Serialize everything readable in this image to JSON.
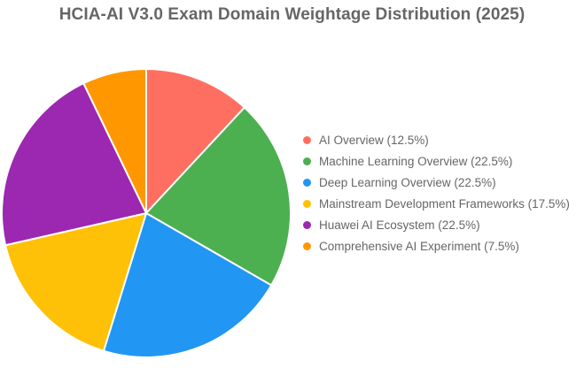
{
  "chart_data": {
    "type": "pie",
    "title": "HCIA-AI V3.0 Exam Domain Weightage Distribution (2025)",
    "legend_position": "right",
    "slices": [
      {
        "label": "AI Overview (12.5%)",
        "value": 12.5,
        "color": "#FF6F61"
      },
      {
        "label": "Machine Learning Overview (22.5%)",
        "value": 22.5,
        "color": "#4CAF50"
      },
      {
        "label": "Deep Learning Overview (22.5%)",
        "value": 22.5,
        "color": "#2196F3"
      },
      {
        "label": "Mainstream Development Frameworks (17.5%)",
        "value": 17.5,
        "color": "#FFC107"
      },
      {
        "label": "Huawei AI Ecosystem (22.5%)",
        "value": 22.5,
        "color": "#9C27B0"
      },
      {
        "label": "Comprehensive AI Experiment (7.5%)",
        "value": 7.5,
        "color": "#FF9800"
      }
    ]
  }
}
